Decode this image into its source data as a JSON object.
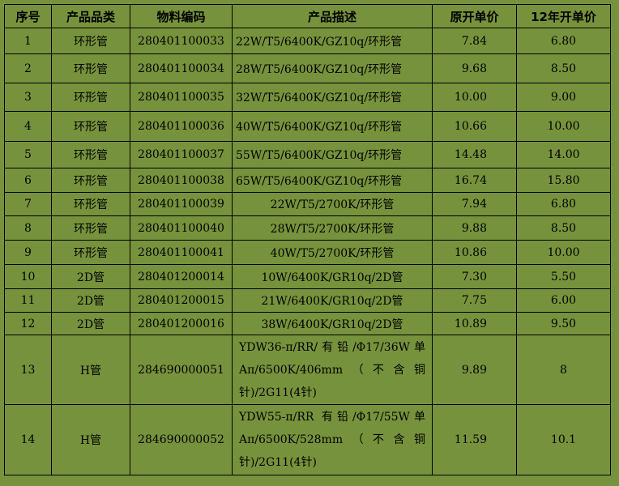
{
  "colors": {
    "background": "#77923c",
    "border": "#000000"
  },
  "table": {
    "headers": [
      "序号",
      "产品品类",
      "物料编码",
      "产品描述",
      "原开单价",
      "12年开单价"
    ],
    "rows": [
      [
        "1",
        "环形管",
        "280401100033",
        "22W/T5/6400K/GZ10q/环形管",
        "7.84",
        "6.80"
      ],
      [
        "2",
        "环形管",
        "280401100034",
        "28W/T5/6400K/GZ10q/环形管",
        "9.68",
        "8.50"
      ],
      [
        "3",
        "环形管",
        "280401100035",
        "32W/T5/6400K/GZ10q/环形管",
        "10.00",
        "9.00"
      ],
      [
        "4",
        "环形管",
        "280401100036",
        "40W/T5/6400K/GZ10q/环形管",
        "10.66",
        "10.00"
      ],
      [
        "5",
        "环形管",
        "280401100037",
        "55W/T5/6400K/GZ10q/环形管",
        "14.48",
        "14.00"
      ],
      [
        "6",
        "环形管",
        "280401100038",
        "65W/T5/6400K/GZ10q/环形管",
        "16.74",
        "15.80"
      ],
      [
        "7",
        "环形管",
        "280401100039",
        "22W/T5/2700K/环形管",
        "7.94",
        "6.80"
      ],
      [
        "8",
        "环形管",
        "280401100040",
        "28W/T5/2700K/环形管",
        "9.88",
        "8.50"
      ],
      [
        "9",
        "环形管",
        "280401100041",
        "40W/T5/2700K/环形管",
        "10.86",
        "10.00"
      ],
      [
        "10",
        "2D管",
        "280401200014",
        "10W/6400K/GR10q/2D管",
        "7.30",
        "5.50"
      ],
      [
        "11",
        "2D管",
        "280401200015",
        "21W/6400K/GR10q/2D管",
        "7.75",
        "6.00"
      ],
      [
        "12",
        "2D管",
        "280401200016",
        "38W/6400K/GR10q/2D管",
        "10.89",
        "9.50"
      ],
      [
        "13",
        "H管",
        "284690000051",
        "YDW36-π/RR/有铅/Φ17/36W单Aπ/6500K/406mm（不含铜针)/2G11(4针)",
        "9.89",
        "8"
      ],
      [
        "14",
        "H管",
        "284690000052",
        "YDW55-π/RR 有铅/Φ17/55W单Aπ/6500K/528mm（不含铜针)/2G11(4针)",
        "11.59",
        "10.1"
      ]
    ]
  }
}
